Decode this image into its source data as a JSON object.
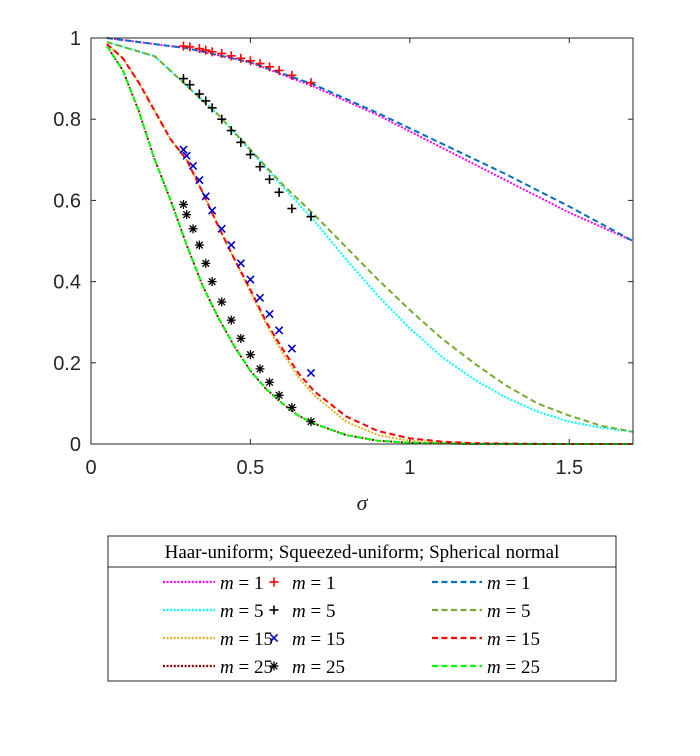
{
  "chart_data": {
    "type": "line",
    "title": "",
    "xlabel": "σ",
    "ylabel": "",
    "xlim": [
      0,
      1.7
    ],
    "ylim": [
      0,
      1
    ],
    "xticks": [
      0,
      0.5,
      1,
      1.5
    ],
    "xtick_labels": [
      "0",
      "0.5",
      "1",
      "1.5"
    ],
    "yticks": [
      0,
      0.2,
      0.4,
      0.6,
      0.8,
      1
    ],
    "ytick_labels": [
      "0",
      "0.2",
      "0.4",
      "0.6",
      "0.8",
      "1"
    ],
    "legend": {
      "title": "Haar-uniform; Squeezed-uniform; Spherical normal",
      "placement": "below-plot",
      "columns": 3
    },
    "m_values": [
      1,
      5,
      15,
      25
    ],
    "series": [
      {
        "name": "Haar-uniform m = 1",
        "label": "= 1",
        "group": "haar",
        "m": 1,
        "color": "#ff00ff",
        "style": "dotted",
        "x": [
          0.05,
          0.3,
          0.5,
          0.7,
          0.9,
          1.1,
          1.3,
          1.5,
          1.7
        ],
        "y": [
          1.0,
          0.975,
          0.94,
          0.88,
          0.81,
          0.73,
          0.65,
          0.57,
          0.5
        ]
      },
      {
        "name": "Haar-uniform m = 5",
        "label": "= 5",
        "group": "haar",
        "m": 5,
        "color": "#00ffff",
        "style": "dotted",
        "x": [
          0.05,
          0.2,
          0.4,
          0.6,
          0.7,
          0.8,
          0.9,
          1.0,
          1.1,
          1.2,
          1.3,
          1.4,
          1.5,
          1.6,
          1.7
        ],
        "y": [
          0.99,
          0.955,
          0.81,
          0.635,
          0.55,
          0.455,
          0.365,
          0.285,
          0.215,
          0.16,
          0.115,
          0.08,
          0.055,
          0.04,
          0.03
        ]
      },
      {
        "name": "Haar-uniform m = 15",
        "label": "= 15",
        "group": "haar",
        "m": 15,
        "color": "#e6b020",
        "style": "dotted",
        "x": [
          0.05,
          0.1,
          0.15,
          0.2,
          0.25,
          0.3,
          0.35,
          0.4,
          0.45,
          0.5,
          0.55,
          0.6,
          0.65,
          0.7,
          0.8,
          0.9,
          1.0,
          1.1,
          1.2,
          1.4,
          1.7
        ],
        "y": [
          0.985,
          0.95,
          0.89,
          0.82,
          0.75,
          0.7,
          0.62,
          0.535,
          0.455,
          0.375,
          0.295,
          0.225,
          0.165,
          0.12,
          0.055,
          0.022,
          0.008,
          0.003,
          0.001,
          0,
          0
        ]
      },
      {
        "name": "Haar-uniform m = 25",
        "label": "= 25",
        "group": "haar",
        "m": 25,
        "color": "#800000",
        "style": "dotted",
        "x": [
          0.05,
          0.1,
          0.15,
          0.2,
          0.25,
          0.3,
          0.35,
          0.4,
          0.45,
          0.5,
          0.55,
          0.6,
          0.65,
          0.7,
          0.8,
          0.9,
          1.0,
          1.2,
          1.7
        ],
        "y": [
          0.98,
          0.92,
          0.82,
          0.7,
          0.6,
          0.49,
          0.39,
          0.31,
          0.24,
          0.18,
          0.135,
          0.1,
          0.07,
          0.05,
          0.022,
          0.008,
          0.003,
          0,
          0
        ]
      },
      {
        "name": "Squeezed-uniform m = 1",
        "label": "= 1",
        "group": "squeezed",
        "m": 1,
        "color": "#ff0000",
        "marker": "+",
        "x": [
          0.29,
          0.31,
          0.34,
          0.36,
          0.38,
          0.41,
          0.44,
          0.47,
          0.5,
          0.53,
          0.56,
          0.59,
          0.63,
          0.69
        ],
        "y": [
          0.98,
          0.978,
          0.974,
          0.97,
          0.966,
          0.962,
          0.956,
          0.95,
          0.944,
          0.937,
          0.929,
          0.92,
          0.908,
          0.89
        ]
      },
      {
        "name": "Squeezed-uniform m = 5",
        "label": "= 5",
        "group": "squeezed",
        "m": 5,
        "color": "#000000",
        "marker": "+",
        "x": [
          0.29,
          0.31,
          0.34,
          0.36,
          0.38,
          0.41,
          0.44,
          0.47,
          0.5,
          0.53,
          0.56,
          0.59,
          0.63,
          0.69
        ],
        "y": [
          0.9,
          0.885,
          0.862,
          0.845,
          0.828,
          0.8,
          0.772,
          0.743,
          0.713,
          0.683,
          0.652,
          0.62,
          0.58,
          0.56
        ]
      },
      {
        "name": "Squeezed-uniform m = 15",
        "label": "= 15",
        "group": "squeezed",
        "m": 15,
        "color": "#0000cc",
        "marker": "x",
        "x": [
          0.29,
          0.3,
          0.32,
          0.34,
          0.36,
          0.38,
          0.41,
          0.44,
          0.47,
          0.5,
          0.53,
          0.56,
          0.59,
          0.63,
          0.69
        ],
        "y": [
          0.725,
          0.71,
          0.685,
          0.65,
          0.61,
          0.575,
          0.53,
          0.49,
          0.445,
          0.405,
          0.36,
          0.32,
          0.28,
          0.235,
          0.175
        ]
      },
      {
        "name": "Squeezed-uniform m = 25",
        "label": "= 25",
        "group": "squeezed",
        "m": 25,
        "color": "#000000",
        "marker": "*",
        "x": [
          0.29,
          0.3,
          0.32,
          0.34,
          0.36,
          0.38,
          0.41,
          0.44,
          0.47,
          0.5,
          0.53,
          0.56,
          0.59,
          0.63,
          0.69
        ],
        "y": [
          0.59,
          0.565,
          0.53,
          0.49,
          0.445,
          0.4,
          0.35,
          0.305,
          0.26,
          0.22,
          0.185,
          0.152,
          0.12,
          0.09,
          0.055
        ]
      },
      {
        "name": "Spherical normal m = 1",
        "label": "= 1",
        "group": "spherical",
        "m": 1,
        "color": "#0072bd",
        "style": "dashed",
        "x": [
          0.05,
          0.3,
          0.5,
          0.7,
          0.9,
          1.1,
          1.3,
          1.5,
          1.7
        ],
        "y": [
          1.0,
          0.975,
          0.94,
          0.885,
          0.815,
          0.74,
          0.665,
          0.585,
          0.5
        ]
      },
      {
        "name": "Spherical normal m = 5",
        "label": "= 5",
        "group": "spherical",
        "m": 5,
        "color": "#77ac30",
        "style": "dashed",
        "x": [
          0.05,
          0.2,
          0.4,
          0.6,
          0.7,
          0.8,
          0.9,
          1.0,
          1.1,
          1.2,
          1.3,
          1.4,
          1.5,
          1.6,
          1.7
        ],
        "y": [
          0.99,
          0.955,
          0.81,
          0.64,
          0.565,
          0.485,
          0.405,
          0.33,
          0.26,
          0.2,
          0.145,
          0.1,
          0.07,
          0.045,
          0.03
        ]
      },
      {
        "name": "Spherical normal m = 15",
        "label": "= 15",
        "group": "spherical",
        "m": 15,
        "color": "#ff0000",
        "style": "dashed",
        "x": [
          0.05,
          0.1,
          0.15,
          0.2,
          0.25,
          0.3,
          0.35,
          0.4,
          0.45,
          0.5,
          0.55,
          0.6,
          0.65,
          0.7,
          0.8,
          0.9,
          1.0,
          1.1,
          1.2,
          1.3,
          1.5,
          1.7
        ],
        "y": [
          0.985,
          0.95,
          0.89,
          0.82,
          0.75,
          0.7,
          0.62,
          0.535,
          0.455,
          0.38,
          0.3,
          0.235,
          0.175,
          0.13,
          0.068,
          0.032,
          0.014,
          0.006,
          0.002,
          0.001,
          0,
          0
        ]
      },
      {
        "name": "Spherical normal m = 25",
        "label": "= 25",
        "group": "spherical",
        "m": 25,
        "color": "#00ff00",
        "style": "dashed",
        "x": [
          0.05,
          0.1,
          0.15,
          0.2,
          0.25,
          0.3,
          0.35,
          0.4,
          0.45,
          0.5,
          0.55,
          0.6,
          0.65,
          0.7,
          0.8,
          0.9,
          1.0,
          1.2,
          1.7
        ],
        "y": [
          0.98,
          0.92,
          0.82,
          0.7,
          0.6,
          0.49,
          0.39,
          0.31,
          0.24,
          0.18,
          0.135,
          0.1,
          0.07,
          0.05,
          0.022,
          0.008,
          0.003,
          0,
          0
        ]
      }
    ]
  }
}
